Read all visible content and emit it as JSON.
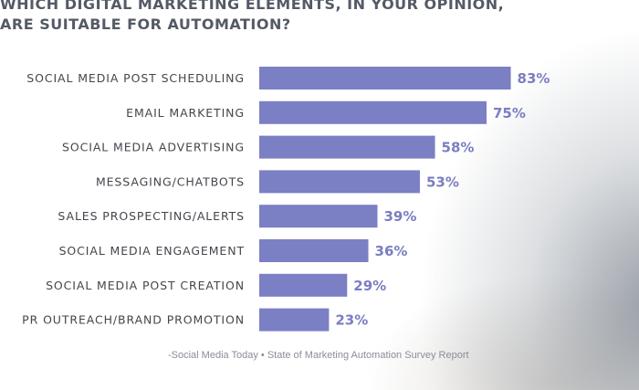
{
  "title_lines": [
    "WHICH DIGITAL MARKETING ELEMENTS, IN YOUR OPINION,",
    "ARE SUITABLE FOR AUTOMATION?"
  ],
  "source": "-Social Media Today  • State of Marketing Automation Survey Report",
  "colors": {
    "bar": "#7b7fc4",
    "value_text": "#7a7ec2",
    "title": "#545a66",
    "label": "#44464d"
  },
  "chart_data": {
    "type": "bar",
    "orientation": "horizontal",
    "categories": [
      "SOCIAL MEDIA POST SCHEDULING",
      "EMAIL MARKETING",
      "SOCIAL MEDIA ADVERTISING",
      "MESSAGING/CHATBOTS",
      "SALES PROSPECTING/ALERTS",
      "SOCIAL MEDIA ENGAGEMENT",
      "SOCIAL MEDIA POST CREATION",
      "PR OUTREACH/BRAND PROMOTION"
    ],
    "values": [
      83,
      75,
      58,
      53,
      39,
      36,
      29,
      23
    ],
    "value_labels": [
      "83%",
      "75%",
      "58%",
      "53%",
      "39%",
      "36%",
      "29%",
      "23%"
    ],
    "xlim": [
      0,
      100
    ],
    "grid": false,
    "legend": "none"
  }
}
